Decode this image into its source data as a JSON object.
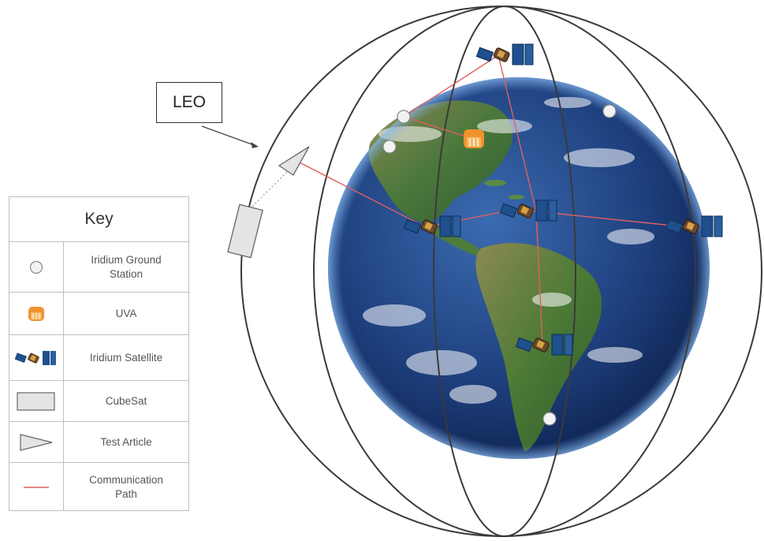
{
  "leo_label": "LEO",
  "key": {
    "title": "Key",
    "items": [
      {
        "symbol": "ground-station-icon",
        "label": "Iridium Ground\nStation"
      },
      {
        "symbol": "uva-icon",
        "label": "UVA"
      },
      {
        "symbol": "iridium-satellite-icon",
        "label": "Iridium Satellite"
      },
      {
        "symbol": "cubesat-icon",
        "label": "CubeSat"
      },
      {
        "symbol": "test-article-icon",
        "label": "Test Article"
      },
      {
        "symbol": "communication-path-icon",
        "label": "Communication\nPath"
      }
    ]
  },
  "colors": {
    "orbit": "#3a3a3a",
    "comm_path": "#e06060",
    "uva": "#f0922e",
    "panel": "#1f4f8c",
    "ocean": "#1d3f7a",
    "land": "#4f7a3a"
  }
}
